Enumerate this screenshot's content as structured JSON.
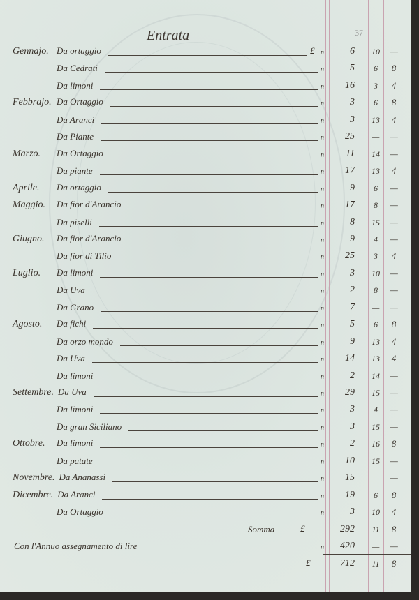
{
  "header": {
    "title": "Entrata",
    "page_number": "37"
  },
  "currency_symbol": "₤",
  "entries": [
    {
      "month": "Gennajo.",
      "item": "Da ortaggio",
      "lire": "6",
      "soldi": "10",
      "denari": "—"
    },
    {
      "month": "",
      "item": "Da Cedrati",
      "lire": "5",
      "soldi": "6",
      "denari": "8"
    },
    {
      "month": "",
      "item": "Da limoni",
      "lire": "16",
      "soldi": "3",
      "denari": "4"
    },
    {
      "month": "Febbrajo.",
      "item": "Da Ortaggio",
      "lire": "3",
      "soldi": "6",
      "denari": "8"
    },
    {
      "month": "",
      "item": "Da Aranci",
      "lire": "3",
      "soldi": "13",
      "denari": "4"
    },
    {
      "month": "",
      "item": "Da Piante",
      "lire": "25",
      "soldi": "—",
      "denari": "—"
    },
    {
      "month": "Marzo.",
      "item": "Da Ortaggio",
      "lire": "11",
      "soldi": "14",
      "denari": "—"
    },
    {
      "month": "",
      "item": "Da piante",
      "lire": "17",
      "soldi": "13",
      "denari": "4"
    },
    {
      "month": "Aprile.",
      "item": "Da ortaggio",
      "lire": "9",
      "soldi": "6",
      "denari": "—"
    },
    {
      "month": "Maggio.",
      "item": "Da fior d'Arancio",
      "lire": "17",
      "soldi": "8",
      "denari": "—"
    },
    {
      "month": "",
      "item": "Da piselli",
      "lire": "8",
      "soldi": "15",
      "denari": "—"
    },
    {
      "month": "Giugno.",
      "item": "Da fior d'Arancio",
      "lire": "9",
      "soldi": "4",
      "denari": "—"
    },
    {
      "month": "",
      "item": "Da fior di Tilio",
      "lire": "25",
      "soldi": "3",
      "denari": "4"
    },
    {
      "month": "Luglio.",
      "item": "Da limoni",
      "lire": "3",
      "soldi": "10",
      "denari": "—"
    },
    {
      "month": "",
      "item": "Da Uva",
      "lire": "2",
      "soldi": "8",
      "denari": "—"
    },
    {
      "month": "",
      "item": "Da Grano",
      "lire": "7",
      "soldi": "—",
      "denari": "—"
    },
    {
      "month": "Agosto.",
      "item": "Da fichi",
      "lire": "5",
      "soldi": "6",
      "denari": "8"
    },
    {
      "month": "",
      "item": "Da orzo mondo",
      "lire": "9",
      "soldi": "13",
      "denari": "4"
    },
    {
      "month": "",
      "item": "Da Uva",
      "lire": "14",
      "soldi": "13",
      "denari": "4"
    },
    {
      "month": "",
      "item": "Da limoni",
      "lire": "2",
      "soldi": "14",
      "denari": "—"
    },
    {
      "month": "Settembre.",
      "item": "Da Uva",
      "lire": "29",
      "soldi": "15",
      "denari": "—"
    },
    {
      "month": "",
      "item": "Da limoni",
      "lire": "3",
      "soldi": "4",
      "denari": "—"
    },
    {
      "month": "",
      "item": "Da gran Siciliano",
      "lire": "3",
      "soldi": "15",
      "denari": "—"
    },
    {
      "month": "Ottobre.",
      "item": "Da limoni",
      "lire": "2",
      "soldi": "16",
      "denari": "8"
    },
    {
      "month": "",
      "item": "Da patate",
      "lire": "10",
      "soldi": "15",
      "denari": "—"
    },
    {
      "month": "Novembre.",
      "item": "Da Ananassi",
      "lire": "15",
      "soldi": "—",
      "denari": "—"
    },
    {
      "month": "Dicembre.",
      "item": "Da Aranci",
      "lire": "19",
      "soldi": "6",
      "denari": "8"
    },
    {
      "month": "",
      "item": "Da Ortaggio",
      "lire": "3",
      "soldi": "10",
      "denari": "4"
    }
  ],
  "somma": {
    "label": "Somma",
    "lire": "292",
    "soldi": "11",
    "denari": "8"
  },
  "assegnamento": {
    "label": "Con l'Annuo assegnamento di lire",
    "lire": "420",
    "soldi": "—",
    "denari": "—"
  },
  "totale": {
    "lire": "712",
    "soldi": "11",
    "denari": "8"
  }
}
